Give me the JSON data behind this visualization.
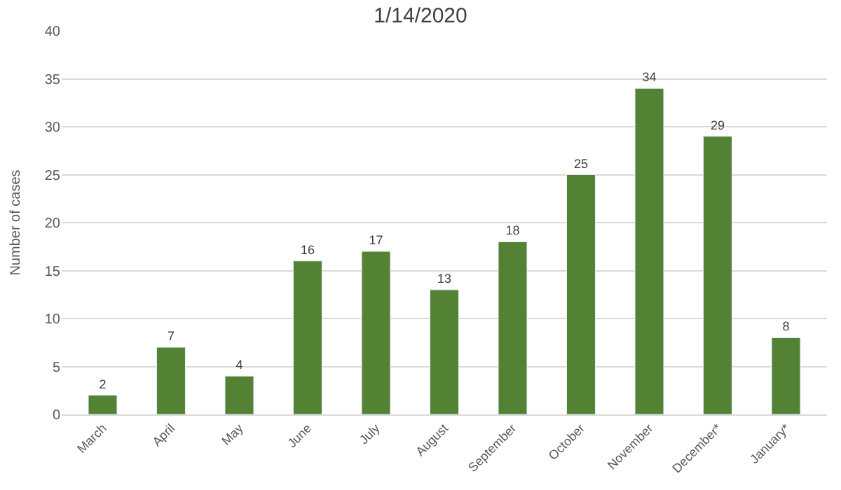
{
  "chart_data": {
    "type": "bar",
    "title": "1/14/2020",
    "ylabel": "Number of cases",
    "categories": [
      "March",
      "April",
      "May",
      "June",
      "July",
      "August",
      "September",
      "October",
      "November",
      "December*",
      "January*"
    ],
    "values": [
      2,
      7,
      4,
      16,
      17,
      13,
      18,
      25,
      34,
      29,
      8
    ],
    "color": "#548235",
    "ylim": [
      0,
      40
    ],
    "yticks": [
      0,
      5,
      10,
      15,
      20,
      25,
      30,
      35,
      40
    ],
    "grid": "y",
    "data_labels": true
  }
}
